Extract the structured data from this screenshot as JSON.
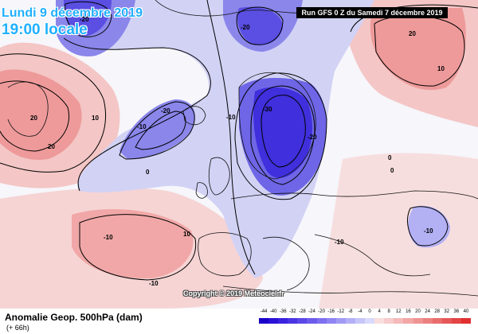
{
  "header": {
    "date_label": "Lundi 9 décembre 2019",
    "hour_label": "19:00 locale",
    "run_label": "Run GFS 0 Z du Samedi 7 décembre 2019"
  },
  "map": {
    "copyright": "Copyright © 2019 Meteociel.fr",
    "contour_labels": [
      "-20",
      "-20",
      "-20",
      "-10",
      "-10",
      "-30",
      "-20",
      "0",
      "20",
      "10",
      "20",
      "10",
      "0",
      "-10",
      "-10",
      "0",
      "-10",
      "-10",
      "10",
      "20"
    ],
    "colors": {
      "neg_deep": "#3a2bd8",
      "neg_mid": "#7a73ec",
      "neg_light": "#c6c6f6",
      "pos_light": "#f8d2d2",
      "pos_mid": "#f28b8b",
      "pos_deep": "#e85a5a"
    }
  },
  "footer": {
    "title": "Anomalie Geop. 500hPa (dam)",
    "subtitle": "(+ 66h)"
  },
  "scale": {
    "labels": [
      "-44",
      "-40",
      "-36",
      "-32",
      "-28",
      "-24",
      "-20",
      "-16",
      "-12",
      "-8",
      "-4",
      "0",
      "4",
      "8",
      "12",
      "16",
      "20",
      "24",
      "28",
      "32",
      "36",
      "40"
    ],
    "colors": [
      "#1a00c8",
      "#2b10d6",
      "#3a22de",
      "#4b35e3",
      "#5c48e8",
      "#6d5cec",
      "#7e70ef",
      "#8f85f2",
      "#a19af5",
      "#b3b0f7",
      "#c6c6f9",
      "#d9dafb",
      "#f9dede",
      "#f7cccc",
      "#f4b9b9",
      "#f2a6a6",
      "#ef9393",
      "#ec8080",
      "#e96c6c",
      "#e65858",
      "#e34444",
      "#e03030"
    ]
  }
}
